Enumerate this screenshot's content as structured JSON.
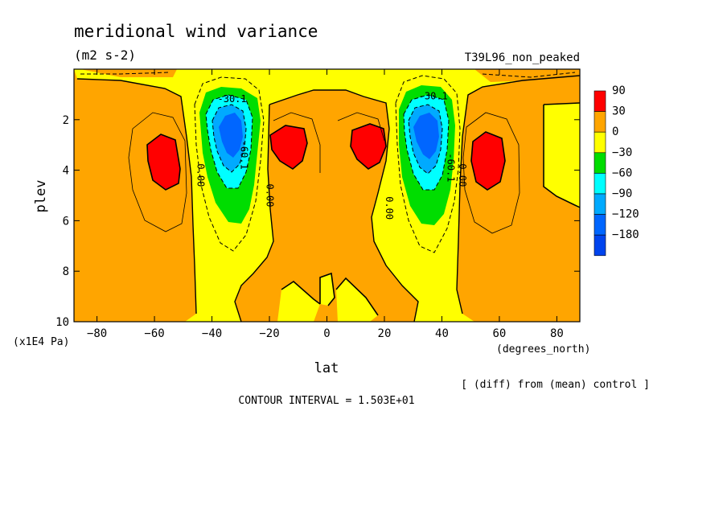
{
  "title": "meridional wind variance",
  "units": "(m2 s-2)",
  "experiment": "T39L96_non_peaked",
  "diff_note": "[ (diff) from (mean) control ]",
  "contour_interval": "CONTOUR INTERVAL = 1.503E+01",
  "colors": {
    "c90": "#ff0000",
    "c30": "#ffa500",
    "c0": "#ffff00",
    "cm30": "#00dd00",
    "cm60": "#00ffff",
    "cm90": "#00aaff",
    "cm120": "#0066ff",
    "cm180": "#0044ee"
  },
  "chart_data": {
    "type": "heatmap",
    "variable": "meridional wind variance",
    "xlabel": "lat",
    "xunits": "(degrees_north)",
    "ylabel": "plev",
    "yunits": "(x1E4 Pa)",
    "xlim": [
      -88,
      88
    ],
    "ylim": [
      10,
      0
    ],
    "x_ticks": [
      -80,
      -60,
      -40,
      -20,
      0,
      20,
      40,
      60,
      80
    ],
    "y_ticks": [
      2,
      4,
      6,
      8,
      10
    ],
    "colorbar": {
      "labels": [
        "90",
        "30",
        "0",
        "-30",
        "-60",
        "-90",
        "-120",
        "-180"
      ],
      "levels": [
        90,
        30,
        0,
        -30,
        -60,
        -90,
        -120,
        -180
      ]
    },
    "contour_labels": [
      {
        "text": "-30.1",
        "lat": -33,
        "plev": 1.3
      },
      {
        "text": "-60.1",
        "lat": -30,
        "plev": 3.4
      },
      {
        "text": "0.00",
        "lat": -45,
        "plev": 4.2
      },
      {
        "text": "0.00",
        "lat": -21,
        "plev": 5.0
      },
      {
        "text": "-30.1",
        "lat": 37,
        "plev": 1.2
      },
      {
        "text": "-60.1",
        "lat": 42,
        "plev": 3.9
      },
      {
        "text": "0.00",
        "lat": 20.5,
        "plev": 5.5
      },
      {
        "text": "0.00",
        "lat": 46,
        "plev": 4.2
      }
    ],
    "features": [
      {
        "kind": "max",
        "lat": -57,
        "plev": 3.6,
        "range": "> 30"
      },
      {
        "kind": "max",
        "lat": -15,
        "plev": 3.0,
        "range": "> 30"
      },
      {
        "kind": "max",
        "lat": 11,
        "plev": 3.1,
        "range": "> 30"
      },
      {
        "kind": "max",
        "lat": 56,
        "plev": 3.6,
        "range": "> 30"
      },
      {
        "kind": "min",
        "lat": -34,
        "plev": 2.7,
        "range": "< -120"
      },
      {
        "kind": "min",
        "lat": 33,
        "plev": 2.7,
        "range": "< -120"
      }
    ]
  }
}
